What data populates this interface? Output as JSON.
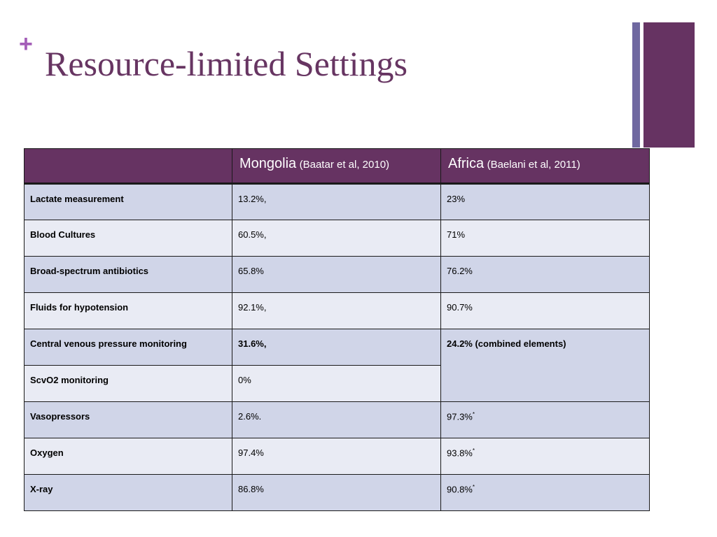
{
  "slide": {
    "plus_symbol": "+",
    "title": "Resource-limited Settings"
  },
  "colors": {
    "accent_purple": "#663362",
    "accent_slate": "#6f68a0",
    "plus_color": "#a45fb8",
    "row_odd": "#d0d5e8",
    "row_even": "#e9ebf4"
  },
  "table": {
    "header": {
      "col1": "",
      "col2_main": "Mongolia",
      "col2_ref": "(Baatar et al, 2010)",
      "col3_main": "Africa",
      "col3_ref": "(Baelani et al, 2011)"
    },
    "rows": [
      {
        "label": "Lactate measurement",
        "mongolia": "13.2%,",
        "africa": "23%",
        "africa_note": ""
      },
      {
        "label": "Blood Cultures",
        "mongolia": "60.5%,",
        "africa": "71%",
        "africa_note": ""
      },
      {
        "label": "Broad-spectrum antibiotics",
        "mongolia": "65.8%",
        "africa": "76.2%",
        "africa_note": ""
      },
      {
        "label": "Fluids for hypotension",
        "mongolia": "92.1%,",
        "africa": "90.7%",
        "africa_note": ""
      },
      {
        "label": "Central venous pressure monitoring",
        "mongolia": "31.6%,",
        "africa": "24.2% (combined elements)",
        "africa_note": ""
      },
      {
        "label": "ScvO2 monitoring",
        "mongolia": "0%"
      },
      {
        "label": "Vasopressors",
        "mongolia": "2.6%.",
        "africa": "97.3%",
        "africa_note": "*"
      },
      {
        "label": "Oxygen",
        "mongolia": "97.4%",
        "africa": "93.8%",
        "africa_note": "*"
      },
      {
        "label": "X-ray",
        "mongolia": "86.8%",
        "africa": "90.8%",
        "africa_note": "*"
      }
    ]
  }
}
